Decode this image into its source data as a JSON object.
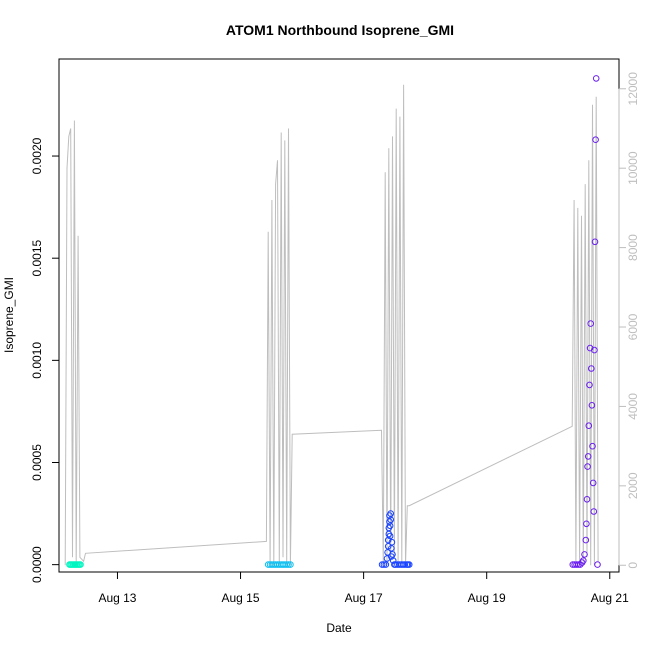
{
  "chart_data": {
    "type": "scatter",
    "title": "ATOM1 Northbound Isoprene_GMI",
    "xlabel": "Date",
    "ylabel": "Isoprene_GMI",
    "x_ticks": [
      {
        "label": "Aug 13",
        "value": 13
      },
      {
        "label": "Aug 15",
        "value": 15
      },
      {
        "label": "Aug 17",
        "value": 17
      },
      {
        "label": "Aug 19",
        "value": 19
      },
      {
        "label": "Aug 21",
        "value": 21
      }
    ],
    "x_range_days": [
      12.05,
      21.15
    ],
    "y_ticks": [
      "0.0000",
      "0.0005",
      "0.0010",
      "0.0015",
      "0.0020"
    ],
    "y_tick_values": [
      0,
      0.0005,
      0.001,
      0.0015,
      0.002
    ],
    "ylim": [
      -3.6e-05,
      0.002475
    ],
    "y2_ticks": [
      "0",
      "2000",
      "4000",
      "6000",
      "8000",
      "10000",
      "12000"
    ],
    "y2_tick_values": [
      0,
      2000,
      4000,
      6000,
      8000,
      10000,
      12000
    ],
    "y2lim": [
      -170,
      12750
    ],
    "series": [
      {
        "color": "#00f5c0",
        "x": [
          12.22,
          12.24,
          12.26,
          12.28,
          12.3,
          12.32,
          12.34,
          12.36,
          12.38,
          12.4
        ],
        "y": [
          0,
          0,
          0,
          0,
          0,
          0,
          0,
          0,
          0,
          0
        ]
      },
      {
        "color": "#10bff0",
        "x": [
          15.45,
          15.48,
          15.51,
          15.54,
          15.57,
          15.6,
          15.63,
          15.66,
          15.69,
          15.72,
          15.75,
          15.78,
          15.81
        ],
        "y": [
          0,
          0,
          0,
          0,
          0,
          0,
          0,
          0,
          0,
          0,
          0,
          0,
          0
        ]
      },
      {
        "color": "#1a44ff",
        "x": [
          17.3,
          17.33,
          17.36,
          17.38,
          17.39,
          17.4,
          17.4,
          17.41,
          17.41,
          17.42,
          17.42,
          17.43,
          17.43,
          17.44,
          17.44,
          17.45,
          17.45,
          17.46,
          17.47,
          17.48,
          17.5,
          17.52,
          17.55,
          17.58,
          17.61,
          17.64,
          17.67,
          17.7,
          17.72,
          17.74
        ],
        "y": [
          0,
          0,
          0,
          3e-05,
          6e-05,
          9e-05,
          0.00012,
          0.00015,
          0.00018,
          0.00021,
          0.00024,
          0.00014,
          0.00019,
          0.00022,
          0.00025,
          4e-05,
          8e-05,
          0.00011,
          5e-05,
          2e-05,
          0,
          0,
          0,
          0,
          0,
          0,
          0,
          0,
          0,
          0
        ]
      },
      {
        "color": "#6a1ff0",
        "x": [
          20.4,
          20.43,
          20.46,
          20.49,
          20.52,
          20.55,
          20.57,
          20.59,
          20.61,
          20.62,
          20.63,
          20.64,
          20.65,
          20.66,
          20.67,
          20.68,
          20.69,
          20.7,
          20.71,
          20.72,
          20.73,
          20.74,
          20.75,
          20.76,
          20.77,
          20.78,
          20.8
        ],
        "y": [
          0,
          0,
          0,
          0,
          0,
          1e-05,
          2e-05,
          5e-05,
          0.00012,
          0.0002,
          0.00032,
          0.00048,
          0.00053,
          0.00068,
          0.00088,
          0.00106,
          0.00118,
          0.00096,
          0.00078,
          0.00058,
          0.0004,
          0.00026,
          0.00105,
          0.00158,
          0.00208,
          0.00238,
          0
        ]
      }
    ],
    "line_series": {
      "axis": "right",
      "color": "#bebebe",
      "x": [
        12.15,
        12.18,
        12.21,
        12.24,
        12.27,
        12.3,
        12.33,
        12.36,
        12.39,
        12.42,
        12.45,
        12.48,
        15.42,
        15.45,
        15.48,
        15.51,
        15.54,
        15.57,
        15.6,
        15.63,
        15.66,
        15.69,
        15.72,
        15.75,
        15.78,
        15.81,
        15.84,
        17.29,
        17.32,
        17.35,
        17.38,
        17.41,
        17.44,
        17.47,
        17.5,
        17.53,
        17.56,
        17.59,
        17.62,
        17.65,
        17.68,
        17.71,
        17.74,
        20.39,
        20.42,
        20.45,
        20.48,
        20.51,
        20.54,
        20.57,
        20.6,
        20.63,
        20.66,
        20.69,
        20.72,
        20.75,
        20.78,
        20.81
      ],
      "y": [
        0,
        10000,
        10800,
        11000,
        200,
        11200,
        0,
        8300,
        200,
        150,
        100,
        300,
        600,
        8400,
        0,
        9200,
        0,
        9600,
        10200,
        0,
        10900,
        200,
        10700,
        0,
        11000,
        0,
        3300,
        3400,
        0,
        9900,
        0,
        10500,
        100,
        10800,
        200,
        11500,
        0,
        11300,
        0,
        12100,
        0,
        1500,
        1500,
        3500,
        9200,
        100,
        9000,
        0,
        8800,
        0,
        9600,
        200,
        10200,
        0,
        11600,
        0,
        11800,
        100
      ]
    }
  }
}
